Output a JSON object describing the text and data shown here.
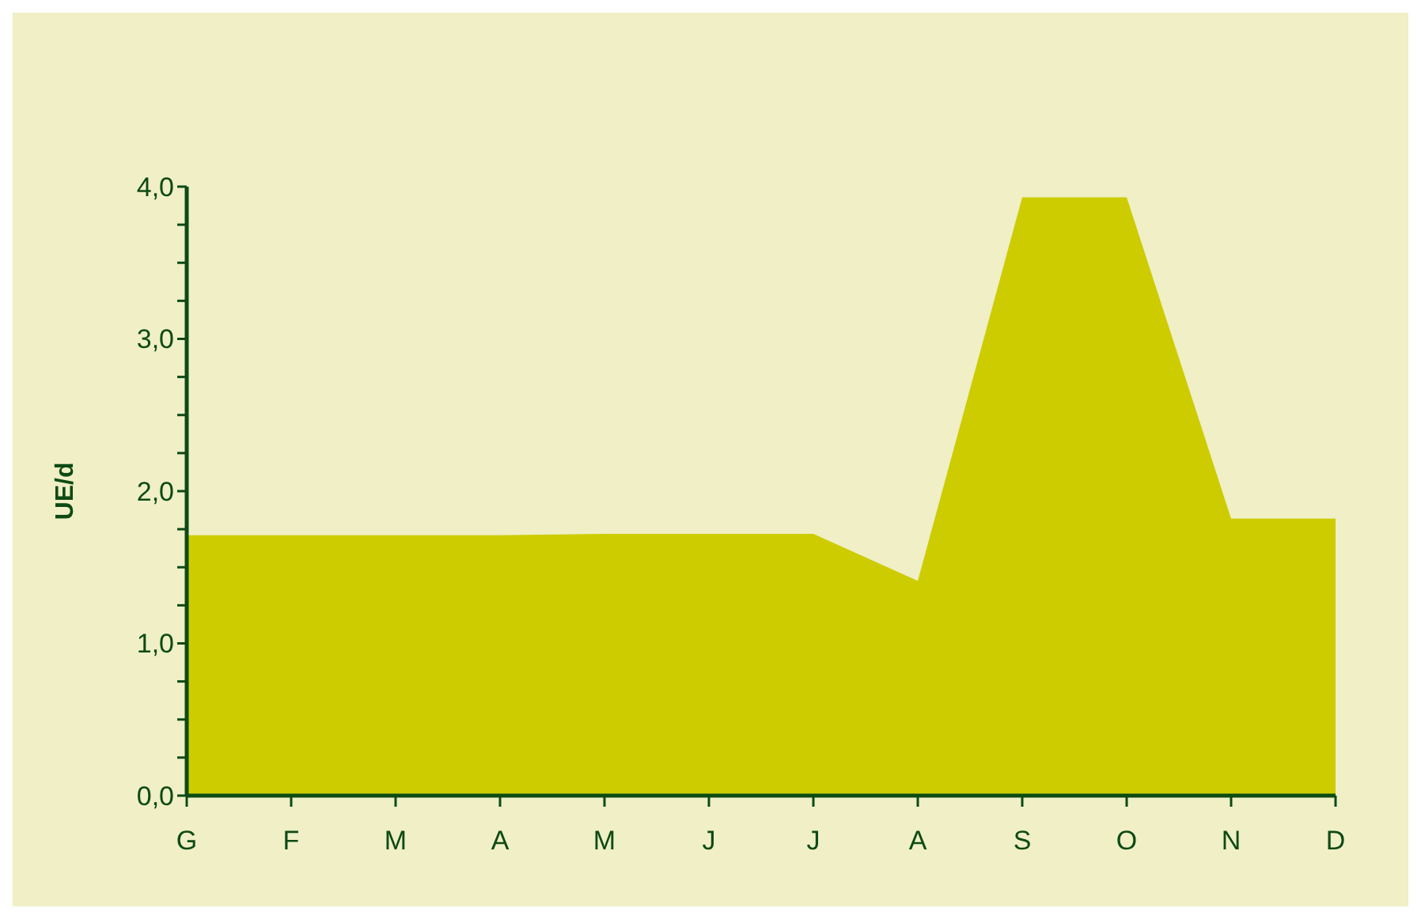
{
  "chart_data": {
    "type": "area",
    "ylabel": "UE/d",
    "categories": [
      "G",
      "F",
      "M",
      "A",
      "M",
      "J",
      "J",
      "A",
      "S",
      "O",
      "N",
      "D"
    ],
    "series": [
      {
        "color": "#cccc00",
        "values": [
          1.71,
          1.71,
          1.71,
          1.71,
          1.72,
          1.72,
          1.72,
          1.41,
          3.93,
          3.93,
          1.82,
          1.82
        ]
      }
    ],
    "ylim": [
      0,
      4
    ],
    "yticks": [
      {
        "value": 0,
        "label": "0,0"
      },
      {
        "value": 0.25,
        "label": null
      },
      {
        "value": 0.5,
        "label": null
      },
      {
        "value": 0.75,
        "label": null
      },
      {
        "value": 1,
        "label": "1,0"
      },
      {
        "value": 1.25,
        "label": null
      },
      {
        "value": 1.5,
        "label": null
      },
      {
        "value": 1.75,
        "label": null
      },
      {
        "value": 2,
        "label": "2,0"
      },
      {
        "value": 2.25,
        "label": null
      },
      {
        "value": 2.5,
        "label": null
      },
      {
        "value": 2.75,
        "label": null
      },
      {
        "value": 3,
        "label": "3,0"
      },
      {
        "value": 3.25,
        "label": null
      },
      {
        "value": 3.5,
        "label": null
      },
      {
        "value": 3.75,
        "label": null
      },
      {
        "value": 4,
        "label": "4,0"
      }
    ],
    "grid": false
  }
}
